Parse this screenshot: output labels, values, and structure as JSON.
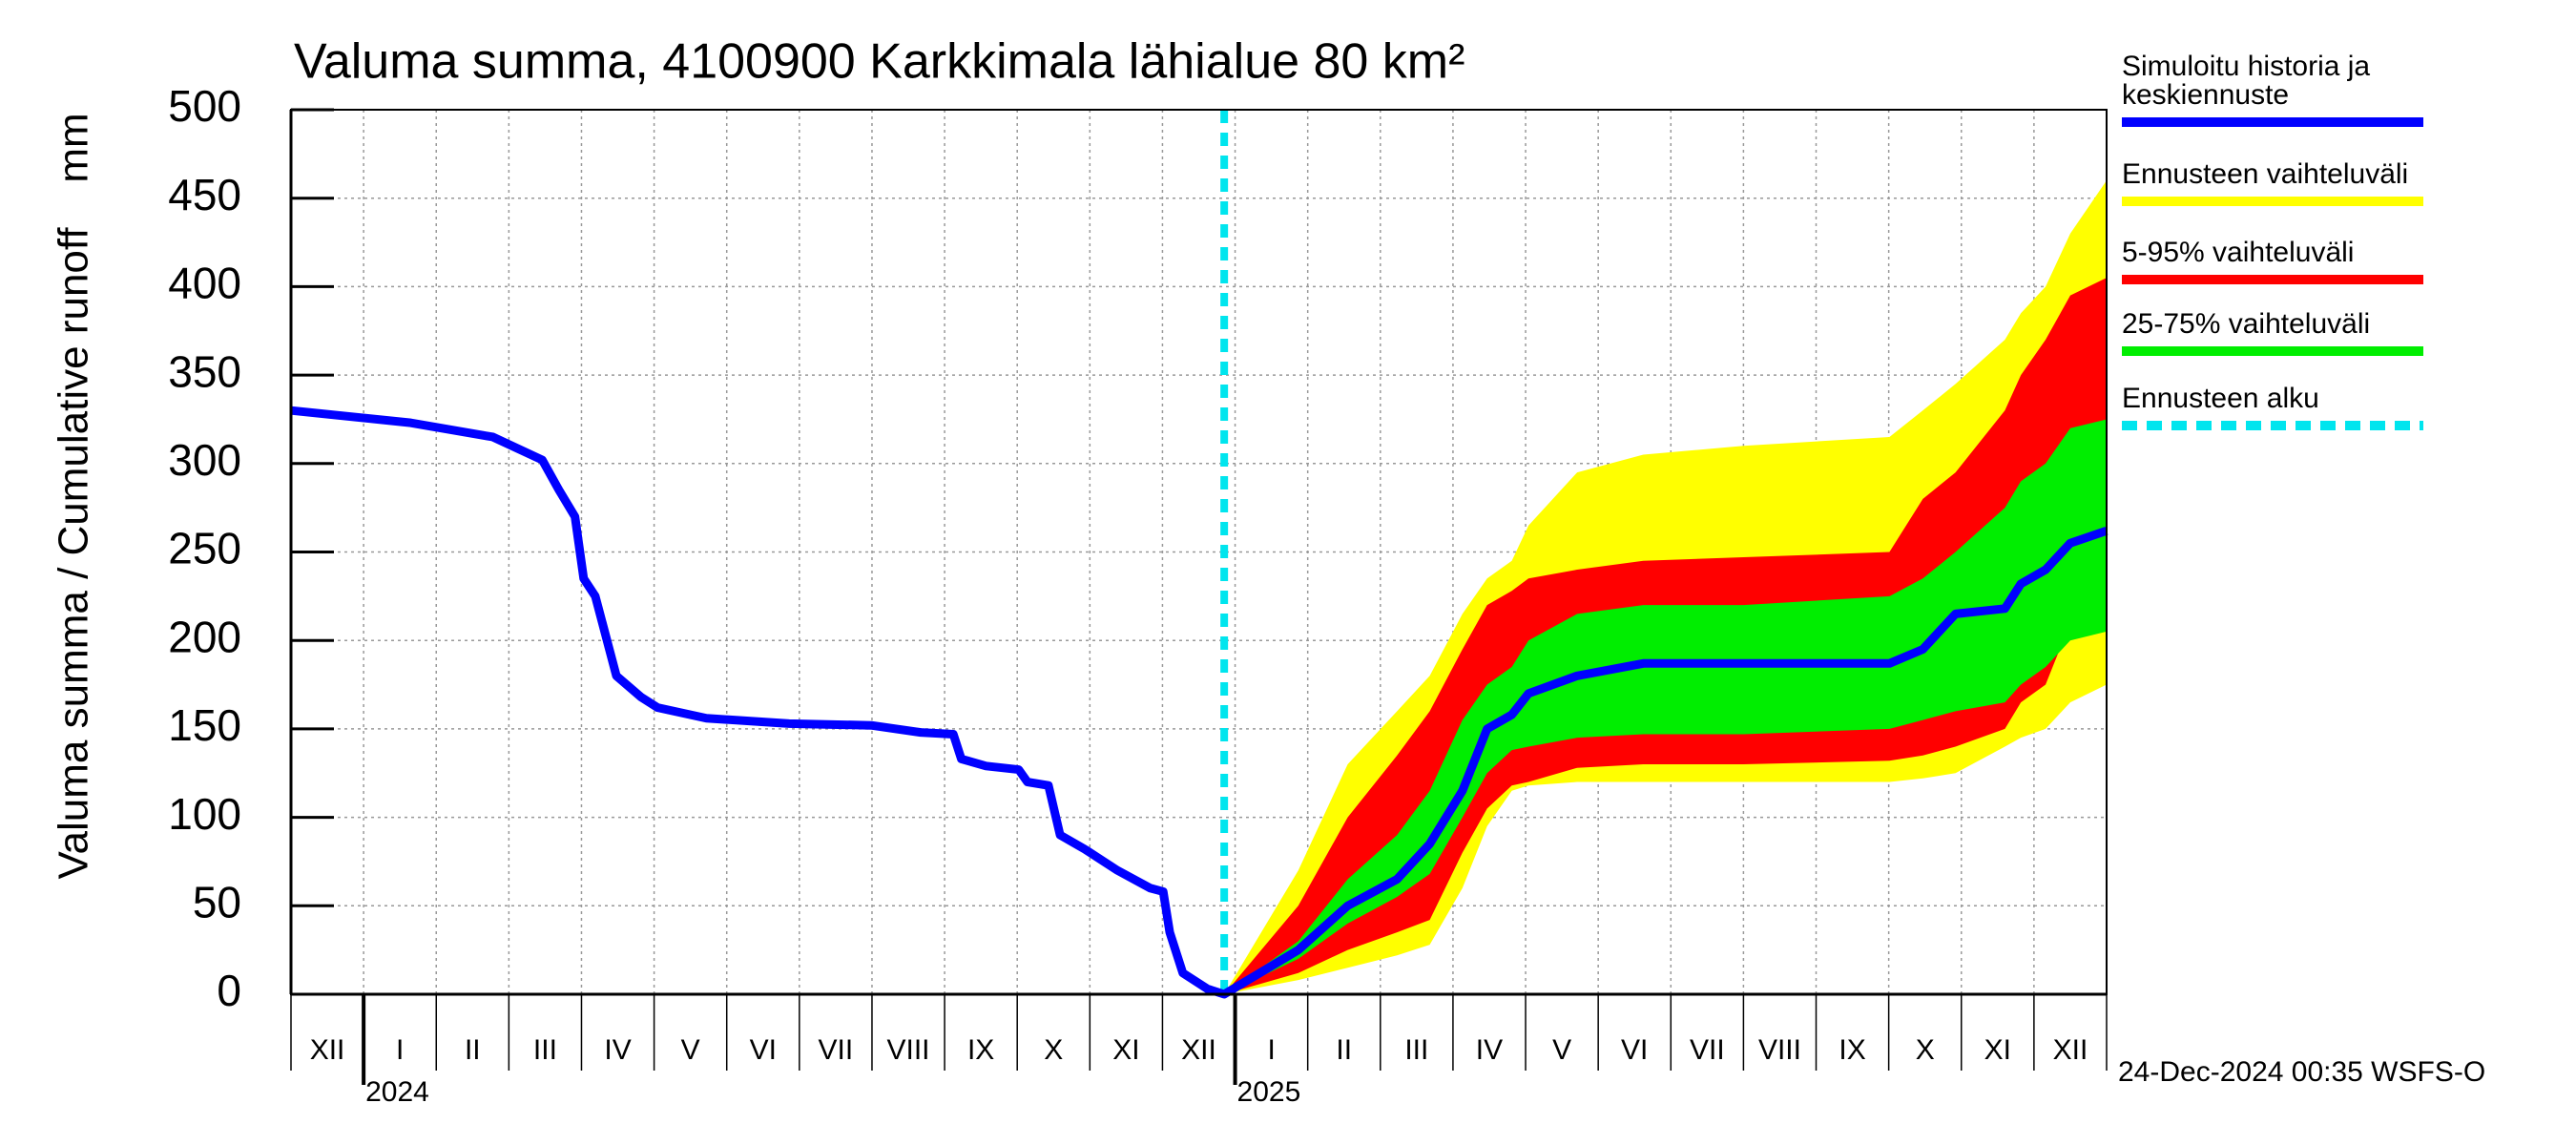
{
  "chart_data": {
    "type": "line",
    "title": "Valuma summa, 4100900 Karkkimala lähialue 80 km²",
    "y_label": "Valuma summa / Cumulative runoff",
    "y_unit": "mm",
    "timestamp": "24-Dec-2024 00:35 WSFS-O",
    "categories": [
      "XII",
      "I",
      "II",
      "III",
      "IV",
      "V",
      "VI",
      "VII",
      "VIII",
      "IX",
      "X",
      "XI",
      "XII",
      "I",
      "II",
      "III",
      "IV",
      "V",
      "VI",
      "VII",
      "VIII",
      "IX",
      "X",
      "XI",
      "XII"
    ],
    "year_ticks": [
      {
        "value": 1,
        "label": "2024"
      },
      {
        "value": 13,
        "label": "2025"
      }
    ],
    "xlim": [
      0,
      25
    ],
    "ylim": [
      0,
      500
    ],
    "yticks": [
      0,
      50,
      100,
      150,
      200,
      250,
      300,
      350,
      400,
      450,
      500
    ],
    "grid": true,
    "series": [
      {
        "name": "Simuloitu historia ja keskiennuste",
        "color": "#0000ff",
        "x": [
          0,
          1.65,
          2.78,
          3.46,
          3.69,
          3.91,
          4.03,
          4.19,
          4.48,
          4.82,
          5.05,
          5.72,
          6.86,
          7.99,
          8.67,
          9.12,
          9.23,
          9.57,
          10.02,
          10.14,
          10.43,
          10.59,
          10.93,
          11.38,
          11.83,
          12.01,
          12.1,
          12.28,
          12.62,
          12.85,
          13.87,
          14.55,
          15.23,
          15.68,
          16.13,
          16.47,
          16.81,
          17.04,
          17.71,
          18.62,
          22.01,
          22.47,
          22.92,
          23.6,
          23.82,
          24.16,
          24.5,
          25
        ],
        "values": [
          330,
          323,
          315,
          302,
          285,
          270,
          235,
          225,
          180,
          168,
          162,
          156,
          153,
          152,
          148,
          147,
          133,
          129,
          127,
          120,
          118,
          90,
          82,
          70,
          60,
          58,
          35,
          12,
          3,
          0,
          25,
          50,
          65,
          85,
          115,
          150,
          158,
          170,
          180,
          187,
          187,
          195,
          215,
          218,
          232,
          240,
          255,
          262
        ]
      }
    ],
    "band_x": [
      12.85,
      13.87,
      14.55,
      15.23,
      15.68,
      16.13,
      16.47,
      16.81,
      17.04,
      17.71,
      18.62,
      20,
      22.01,
      22.47,
      22.92,
      23.6,
      23.82,
      24.16,
      24.5,
      25
    ],
    "bands": [
      {
        "name": "Ennusteen vaihteluväli",
        "color": "#ffff00",
        "lower": [
          0,
          8,
          15,
          22,
          28,
          60,
          95,
          115,
          118,
          120,
          120,
          120,
          120,
          122,
          125,
          140,
          145,
          150,
          165,
          175
        ],
        "upper": [
          0,
          70,
          130,
          160,
          180,
          215,
          235,
          245,
          265,
          295,
          305,
          310,
          315,
          330,
          345,
          370,
          385,
          400,
          430,
          460
        ]
      },
      {
        "name": "5-95% vaihteluväli",
        "color": "#ff0000",
        "lower": [
          0,
          12,
          25,
          35,
          42,
          80,
          105,
          118,
          120,
          128,
          130,
          130,
          132,
          135,
          140,
          150,
          165,
          175,
          210,
          235
        ],
        "upper": [
          0,
          50,
          100,
          135,
          160,
          195,
          220,
          228,
          235,
          240,
          245,
          247,
          250,
          280,
          295,
          330,
          350,
          370,
          395,
          405
        ]
      },
      {
        "name": "25-75% vaihteluväli",
        "color": "#00ee00",
        "lower": [
          0,
          20,
          40,
          55,
          68,
          100,
          125,
          138,
          140,
          145,
          147,
          147,
          150,
          155,
          160,
          165,
          175,
          185,
          200,
          205
        ],
        "upper": [
          0,
          30,
          65,
          90,
          115,
          155,
          175,
          185,
          200,
          215,
          220,
          220,
          225,
          235,
          250,
          275,
          290,
          300,
          320,
          325
        ]
      }
    ],
    "forecast_start": {
      "name": "Ennusteen alku",
      "color": "#00e5ee",
      "x": 12.85
    }
  }
}
